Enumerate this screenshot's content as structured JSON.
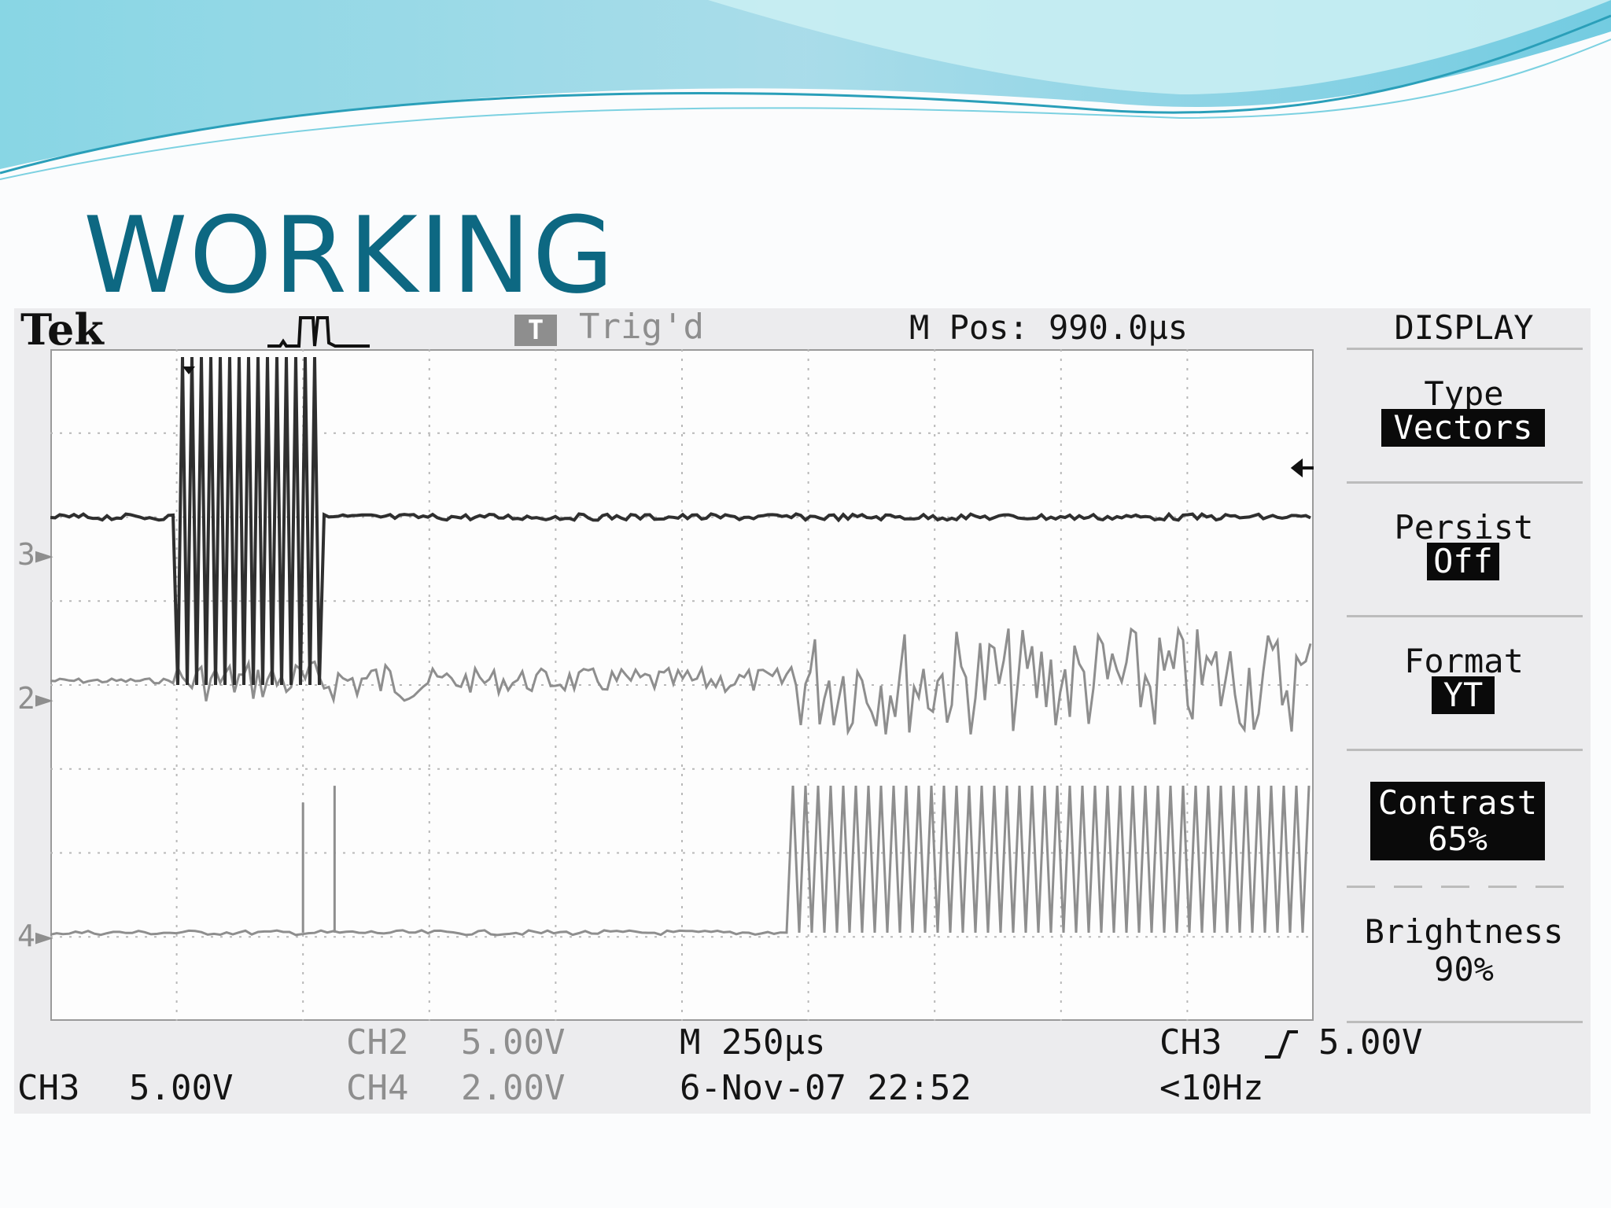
{
  "slide": {
    "title": "WORKING"
  },
  "colors": {
    "title": "#0d6882",
    "banner_light": "#aee3ec",
    "banner_mid": "#6cc9dc",
    "banner_dark": "#3aaec8",
    "trace_ch3": "#2f2f2f",
    "trace_ch2": "#8e8e8e",
    "trace_ch4": "#8e8e8e"
  },
  "scope": {
    "brand": "Tek",
    "trigger_badge": "T",
    "trigger_status": "Trig'd",
    "m_pos": "M Pos: 990.0µs",
    "menu_title": "DISPLAY",
    "menu": [
      {
        "label": "Type",
        "value": "Vectors"
      },
      {
        "label": "Persist",
        "value": "Off"
      },
      {
        "label": "Format",
        "value": "YT"
      },
      {
        "label": "Contrast",
        "value": "65%"
      },
      {
        "label": "Brightness",
        "value": "90%"
      }
    ],
    "channel_markers": {
      "ch3": "3",
      "ch2": "2",
      "ch4": "4"
    },
    "footer": {
      "ch3_label": "CH3",
      "ch3_scale": "5.00V",
      "ch2_label": "CH2",
      "ch2_scale": "5.00V",
      "ch4_label": "CH4",
      "ch4_scale": "2.00V",
      "timebase": "M 250µs",
      "datetime": "6-Nov-07 22:52",
      "trigger_source": "CH3",
      "trigger_level": "5.00V",
      "trigger_freq": "<10Hz"
    }
  },
  "chart_data": {
    "type": "line",
    "title": "",
    "xlabel": "",
    "ylabel": "",
    "grid": true,
    "x_divisions": 10,
    "y_divisions": 8,
    "series": [
      {
        "name": "CH3",
        "description_units": "divisions",
        "baseline_div": 6.0,
        "burst_start_div": 1.0,
        "burst_end_div": 2.15,
        "burst_amplitude_div": 2.0
      },
      {
        "name": "CH2",
        "baseline_div": 4.05,
        "noise_div": 0.25,
        "active_start_div": 5.8,
        "active_amplitude_div": 0.65
      },
      {
        "name": "CH4",
        "baseline_div": 1.05,
        "spike_positions_div": [
          2.0,
          2.25
        ],
        "pulse_start_div": 5.8,
        "pulse_amplitude_div": 1.75
      }
    ]
  }
}
